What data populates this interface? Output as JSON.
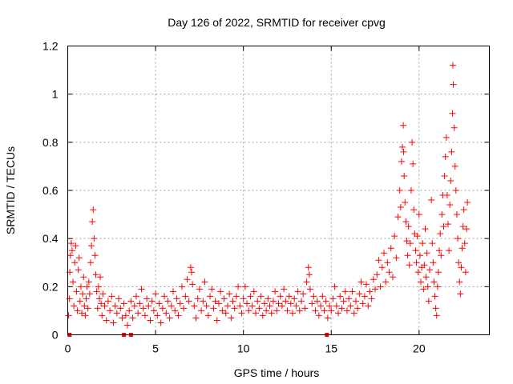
{
  "chart_data": {
    "type": "scatter",
    "title": "Day 126 of 2022, SRMTID for receiver cpvg",
    "xlabel": "GPS time / hours",
    "ylabel": "SRMTID / TECUs",
    "xlim": [
      0,
      24
    ],
    "ylim": [
      0,
      1.2
    ],
    "xticks": [
      0,
      5,
      10,
      15,
      20
    ],
    "xtick_labels": [
      "0",
      "5",
      "10",
      "15",
      "20"
    ],
    "yticks": [
      0,
      0.2,
      0.4,
      0.6,
      0.8,
      1,
      1.2
    ],
    "ytick_labels": [
      "0",
      "0.2",
      "0.4",
      "0.6",
      "0.8",
      "1",
      "1.2"
    ],
    "grid": true,
    "marker": "plus",
    "color": "#ff0000",
    "series": [
      {
        "name": "SRMTID",
        "points": [
          [
            0.05,
            0.08
          ],
          [
            0.1,
            0.15
          ],
          [
            0.12,
            0.26
          ],
          [
            0.15,
            0.33
          ],
          [
            0.2,
            0.38
          ],
          [
            0.25,
            0.35
          ],
          [
            0.3,
            0.22
          ],
          [
            0.35,
            0.12
          ],
          [
            0.4,
            0.3
          ],
          [
            0.45,
            0.37
          ],
          [
            0.5,
            0.18
          ],
          [
            0.55,
            0.1
          ],
          [
            0.6,
            0.27
          ],
          [
            0.65,
            0.32
          ],
          [
            0.7,
            0.14
          ],
          [
            0.75,
            0.2
          ],
          [
            0.8,
            0.09
          ],
          [
            0.85,
            0.17
          ],
          [
            0.9,
            0.24
          ],
          [
            0.95,
            0.12
          ],
          [
            1.0,
            0.08
          ],
          [
            1.05,
            0.15
          ],
          [
            1.1,
            0.2
          ],
          [
            1.15,
            0.11
          ],
          [
            1.2,
            0.22
          ],
          [
            1.25,
            0.17
          ],
          [
            1.3,
            0.3
          ],
          [
            1.35,
            0.37
          ],
          [
            1.4,
            0.47
          ],
          [
            1.45,
            0.52
          ],
          [
            1.5,
            0.4
          ],
          [
            1.55,
            0.33
          ],
          [
            1.6,
            0.25
          ],
          [
            1.65,
            0.18
          ],
          [
            1.7,
            0.11
          ],
          [
            1.75,
            0.2
          ],
          [
            1.8,
            0.15
          ],
          [
            1.85,
            0.24
          ],
          [
            1.9,
            0.13
          ],
          [
            1.95,
            0.08
          ],
          [
            2.0,
            0.17
          ],
          [
            2.1,
            0.12
          ],
          [
            2.2,
            0.06
          ],
          [
            2.3,
            0.14
          ],
          [
            2.4,
            0.1
          ],
          [
            2.5,
            0.16
          ],
          [
            2.6,
            0.05
          ],
          [
            2.7,
            0.12
          ],
          [
            2.8,
            0.09
          ],
          [
            2.9,
            0.15
          ],
          [
            3.0,
            0.11
          ],
          [
            3.1,
            0.07
          ],
          [
            3.2,
            0.13
          ],
          [
            3.3,
            0.08
          ],
          [
            3.4,
            0.04
          ],
          [
            3.5,
            0.1
          ],
          [
            3.6,
            0.14
          ],
          [
            3.7,
            0.07
          ],
          [
            3.8,
            0.12
          ],
          [
            3.9,
            0.16
          ],
          [
            4.0,
            0.09
          ],
          [
            4.1,
            0.13
          ],
          [
            4.2,
            0.19
          ],
          [
            4.3,
            0.11
          ],
          [
            4.4,
            0.08
          ],
          [
            4.5,
            0.15
          ],
          [
            4.6,
            0.12
          ],
          [
            4.7,
            0.06
          ],
          [
            4.8,
            0.14
          ],
          [
            4.9,
            0.1
          ],
          [
            5.0,
            0.17
          ],
          [
            5.1,
            0.08
          ],
          [
            5.2,
            0.13
          ],
          [
            5.3,
            0.05
          ],
          [
            5.4,
            0.11
          ],
          [
            5.5,
            0.16
          ],
          [
            5.6,
            0.09
          ],
          [
            5.7,
            0.14
          ],
          [
            5.8,
            0.07
          ],
          [
            5.9,
            0.12
          ],
          [
            6.0,
            0.18
          ],
          [
            6.1,
            0.1
          ],
          [
            6.2,
            0.15
          ],
          [
            6.3,
            0.08
          ],
          [
            6.4,
            0.13
          ],
          [
            6.5,
            0.2
          ],
          [
            6.6,
            0.11
          ],
          [
            6.7,
            0.16
          ],
          [
            6.8,
            0.23
          ],
          [
            6.9,
            0.14
          ],
          [
            7.0,
            0.28
          ],
          [
            7.05,
            0.26
          ],
          [
            7.1,
            0.21
          ],
          [
            7.2,
            0.12
          ],
          [
            7.3,
            0.07
          ],
          [
            7.4,
            0.15
          ],
          [
            7.5,
            0.19
          ],
          [
            7.6,
            0.1
          ],
          [
            7.7,
            0.14
          ],
          [
            7.8,
            0.22
          ],
          [
            7.9,
            0.12
          ],
          [
            8.0,
            0.08
          ],
          [
            8.1,
            0.16
          ],
          [
            8.2,
            0.19
          ],
          [
            8.3,
            0.11
          ],
          [
            8.4,
            0.14
          ],
          [
            8.5,
            0.06
          ],
          [
            8.6,
            0.13
          ],
          [
            8.7,
            0.18
          ],
          [
            8.8,
            0.1
          ],
          [
            8.9,
            0.15
          ],
          [
            9.0,
            0.09
          ],
          [
            9.1,
            0.12
          ],
          [
            9.2,
            0.17
          ],
          [
            9.3,
            0.07
          ],
          [
            9.4,
            0.14
          ],
          [
            9.5,
            0.11
          ],
          [
            9.6,
            0.16
          ],
          [
            9.7,
            0.2
          ],
          [
            9.8,
            0.12
          ],
          [
            9.9,
            0.09
          ],
          [
            10.0,
            0.15
          ],
          [
            10.1,
            0.2
          ],
          [
            10.2,
            0.13
          ],
          [
            10.3,
            0.1
          ],
          [
            10.4,
            0.16
          ],
          [
            10.5,
            0.12
          ],
          [
            10.6,
            0.18
          ],
          [
            10.7,
            0.09
          ],
          [
            10.8,
            0.14
          ],
          [
            10.9,
            0.11
          ],
          [
            11.0,
            0.16
          ],
          [
            11.1,
            0.08
          ],
          [
            11.2,
            0.13
          ],
          [
            11.3,
            0.1
          ],
          [
            11.4,
            0.15
          ],
          [
            11.5,
            0.12
          ],
          [
            11.6,
            0.09
          ],
          [
            11.7,
            0.14
          ],
          [
            11.8,
            0.18
          ],
          [
            11.9,
            0.1
          ],
          [
            12.0,
            0.13
          ],
          [
            12.1,
            0.16
          ],
          [
            12.2,
            0.12
          ],
          [
            12.3,
            0.19
          ],
          [
            12.4,
            0.14
          ],
          [
            12.5,
            0.1
          ],
          [
            12.6,
            0.16
          ],
          [
            12.7,
            0.13
          ],
          [
            12.8,
            0.09
          ],
          [
            12.9,
            0.15
          ],
          [
            13.0,
            0.12
          ],
          [
            13.1,
            0.18
          ],
          [
            13.2,
            0.1
          ],
          [
            13.3,
            0.14
          ],
          [
            13.4,
            0.17
          ],
          [
            13.5,
            0.11
          ],
          [
            13.6,
            0.22
          ],
          [
            13.7,
            0.28
          ],
          [
            13.75,
            0.25
          ],
          [
            13.8,
            0.19
          ],
          [
            13.9,
            0.13
          ],
          [
            14.0,
            0.16
          ],
          [
            14.1,
            0.1
          ],
          [
            14.2,
            0.14
          ],
          [
            14.3,
            0.08
          ],
          [
            14.4,
            0.12
          ],
          [
            14.5,
            0.16
          ],
          [
            14.6,
            0.1
          ],
          [
            14.7,
            0.14
          ],
          [
            14.8,
            0.07
          ],
          [
            14.9,
            0.12
          ],
          [
            15.0,
            0.1
          ],
          [
            15.1,
            0.15
          ],
          [
            15.2,
            0.2
          ],
          [
            15.3,
            0.12
          ],
          [
            15.4,
            0.09
          ],
          [
            15.5,
            0.16
          ],
          [
            15.6,
            0.11
          ],
          [
            15.7,
            0.14
          ],
          [
            15.8,
            0.18
          ],
          [
            15.9,
            0.1
          ],
          [
            16.0,
            0.15
          ],
          [
            16.1,
            0.12
          ],
          [
            16.2,
            0.18
          ],
          [
            16.3,
            0.09
          ],
          [
            16.4,
            0.14
          ],
          [
            16.5,
            0.11
          ],
          [
            16.6,
            0.17
          ],
          [
            16.7,
            0.22
          ],
          [
            16.8,
            0.13
          ],
          [
            16.9,
            0.16
          ],
          [
            17.0,
            0.21
          ],
          [
            17.1,
            0.12
          ],
          [
            17.2,
            0.18
          ],
          [
            17.3,
            0.15
          ],
          [
            17.4,
            0.23
          ],
          [
            17.5,
            0.19
          ],
          [
            17.6,
            0.25
          ],
          [
            17.7,
            0.31
          ],
          [
            17.8,
            0.2
          ],
          [
            17.9,
            0.28
          ],
          [
            18.0,
            0.34
          ],
          [
            18.1,
            0.22
          ],
          [
            18.2,
            0.3
          ],
          [
            18.3,
            0.26
          ],
          [
            18.4,
            0.36
          ],
          [
            18.5,
            0.24
          ],
          [
            18.6,
            0.41
          ],
          [
            18.7,
            0.32
          ],
          [
            18.8,
            0.49
          ],
          [
            18.9,
            0.6
          ],
          [
            18.95,
            0.53
          ],
          [
            19.0,
            0.72
          ],
          [
            19.05,
            0.78
          ],
          [
            19.1,
            0.87
          ],
          [
            19.12,
            0.76
          ],
          [
            19.15,
            0.66
          ],
          [
            19.2,
            0.55
          ],
          [
            19.25,
            0.47
          ],
          [
            19.3,
            0.39
          ],
          [
            19.35,
            0.33
          ],
          [
            19.4,
            0.45
          ],
          [
            19.45,
            0.29
          ],
          [
            19.5,
            0.38
          ],
          [
            19.55,
            0.6
          ],
          [
            19.6,
            0.8
          ],
          [
            19.65,
            0.71
          ],
          [
            19.7,
            0.52
          ],
          [
            19.75,
            0.42
          ],
          [
            19.8,
            0.35
          ],
          [
            19.85,
            0.3
          ],
          [
            19.9,
            0.41
          ],
          [
            19.95,
            0.26
          ],
          [
            20.0,
            0.5
          ],
          [
            20.05,
            0.33
          ],
          [
            20.1,
            0.22
          ],
          [
            20.15,
            0.28
          ],
          [
            20.2,
            0.38
          ],
          [
            20.25,
            0.19
          ],
          [
            20.3,
            0.29
          ],
          [
            20.35,
            0.44
          ],
          [
            20.4,
            0.24
          ],
          [
            20.45,
            0.34
          ],
          [
            20.5,
            0.2
          ],
          [
            20.55,
            0.14
          ],
          [
            20.6,
            0.27
          ],
          [
            20.7,
            0.56
          ],
          [
            20.75,
            0.38
          ],
          [
            20.8,
            0.3
          ],
          [
            20.85,
            0.22
          ],
          [
            20.9,
            0.16
          ],
          [
            20.95,
            0.11
          ],
          [
            21.0,
            0.08
          ],
          [
            21.05,
            0.2
          ],
          [
            21.1,
            0.26
          ],
          [
            21.15,
            0.35
          ],
          [
            21.2,
            0.42
          ],
          [
            21.25,
            0.33
          ],
          [
            21.3,
            0.5
          ],
          [
            21.35,
            0.58
          ],
          [
            21.4,
            0.45
          ],
          [
            21.45,
            0.66
          ],
          [
            21.5,
            0.74
          ],
          [
            21.55,
            0.82
          ],
          [
            21.6,
            0.58
          ],
          [
            21.65,
            0.46
          ],
          [
            21.7,
            0.35
          ],
          [
            21.75,
            0.54
          ],
          [
            21.8,
            0.64
          ],
          [
            21.85,
            0.76
          ],
          [
            21.9,
            0.92
          ],
          [
            21.92,
            1.12
          ],
          [
            21.95,
            1.04
          ],
          [
            22.0,
            0.86
          ],
          [
            22.05,
            0.7
          ],
          [
            22.1,
            0.6
          ],
          [
            22.15,
            0.5
          ],
          [
            22.2,
            0.4
          ],
          [
            22.25,
            0.3
          ],
          [
            22.3,
            0.22
          ],
          [
            22.35,
            0.17
          ],
          [
            22.4,
            0.28
          ],
          [
            22.45,
            0.36
          ],
          [
            22.5,
            0.45
          ],
          [
            22.55,
            0.52
          ],
          [
            22.6,
            0.38
          ],
          [
            22.65,
            0.26
          ],
          [
            22.7,
            0.44
          ],
          [
            22.75,
            0.55
          ]
        ]
      },
      {
        "name": "zero-markers",
        "marker": "square",
        "points": [
          [
            0.1,
            0.0
          ],
          [
            3.2,
            0.0
          ],
          [
            3.6,
            0.0
          ],
          [
            14.75,
            0.0
          ]
        ]
      }
    ]
  }
}
